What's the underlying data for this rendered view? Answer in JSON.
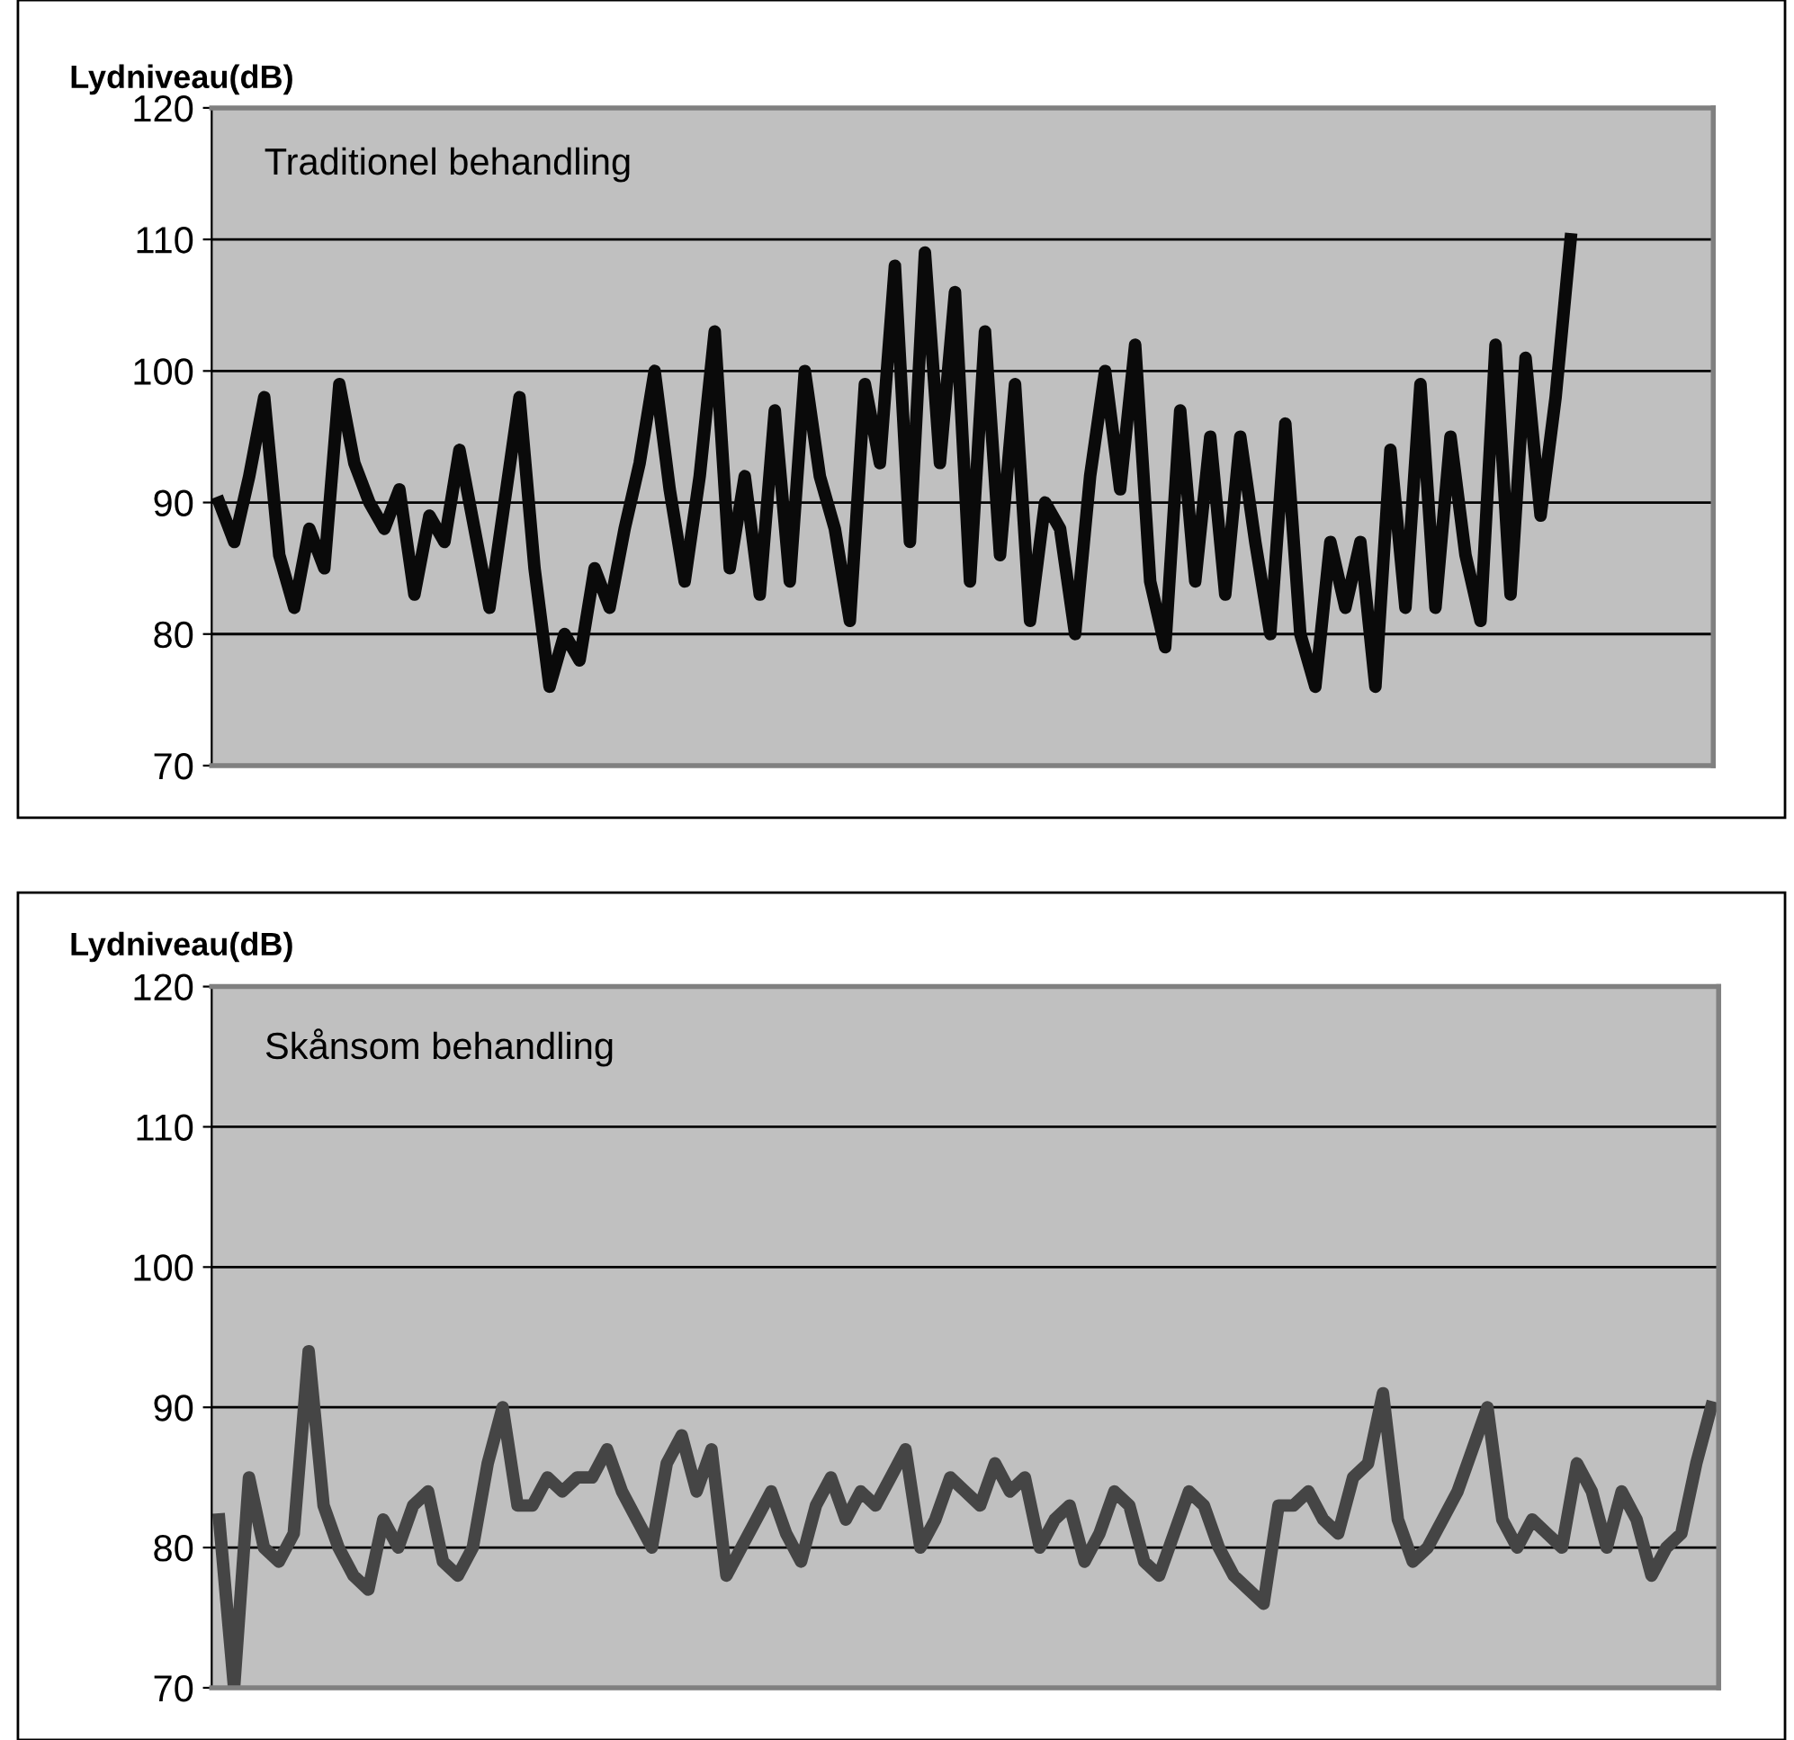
{
  "chart_data": [
    {
      "type": "line",
      "ylabel": "Lydniveau(dB)",
      "annotations": [
        "Traditionel behandling"
      ],
      "categories": [
        null,
        null,
        null,
        null,
        null,
        null,
        null,
        null,
        null,
        null,
        null,
        null,
        null,
        null,
        null,
        null,
        null,
        null,
        null,
        null,
        null,
        null,
        null,
        null,
        null,
        null,
        null,
        null,
        null,
        null,
        null,
        null,
        null,
        null,
        null,
        null,
        null,
        null,
        null,
        null,
        null,
        null,
        null,
        null,
        null,
        null,
        null,
        null,
        null,
        null,
        null,
        null,
        null,
        null,
        null,
        null,
        null,
        null,
        null,
        null,
        null,
        null,
        null,
        null,
        null,
        null,
        null,
        null,
        null,
        null,
        null,
        null,
        null,
        null,
        null,
        null,
        null,
        null,
        null,
        null,
        null,
        null,
        null,
        null,
        null,
        null,
        null,
        null,
        null,
        null,
        null,
        null,
        null,
        null,
        null,
        null,
        null,
        null,
        null,
        null
      ],
      "series": [
        {
          "color": "#0a0a0a",
          "values": [
            90,
            87,
            92,
            98,
            86,
            82,
            88,
            85,
            99,
            93,
            90,
            88,
            91,
            83,
            89,
            87,
            94,
            88,
            82,
            90,
            98,
            85,
            76,
            80,
            78,
            85,
            82,
            88,
            93,
            100,
            91,
            84,
            92,
            103,
            85,
            92,
            83,
            97,
            84,
            100,
            92,
            88,
            81,
            99,
            93,
            108,
            87,
            109,
            93,
            106,
            84,
            103,
            86,
            99,
            81,
            90,
            88,
            80,
            92,
            100,
            91,
            102,
            84,
            79,
            97,
            84,
            95,
            83,
            95,
            87,
            80,
            96,
            80,
            76,
            87,
            82,
            87,
            76,
            94,
            82,
            99,
            82,
            95,
            86,
            81,
            102,
            83,
            101,
            89,
            98,
            110,
            null,
            null,
            null,
            null,
            null,
            null,
            null,
            null,
            null
          ]
        }
      ],
      "ylim": [
        70,
        120
      ],
      "yticks": [
        70,
        80,
        90,
        100,
        110,
        120
      ],
      "grid": "y",
      "tick_labels": "y",
      "marker": "none",
      "line_style": "solid"
    },
    {
      "type": "line",
      "ylabel": "Lydniveau(dB)",
      "annotations": [
        "Skånsom behandling"
      ],
      "categories": [
        null,
        null,
        null,
        null,
        null,
        null,
        null,
        null,
        null,
        null,
        null,
        null,
        null,
        null,
        null,
        null,
        null,
        null,
        null,
        null,
        null,
        null,
        null,
        null,
        null,
        null,
        null,
        null,
        null,
        null,
        null,
        null,
        null,
        null,
        null,
        null,
        null,
        null,
        null,
        null,
        null,
        null,
        null,
        null,
        null,
        null,
        null,
        null,
        null,
        null,
        null,
        null,
        null,
        null,
        null,
        null,
        null,
        null,
        null,
        null,
        null,
        null,
        null,
        null,
        null,
        null,
        null,
        null,
        null,
        null,
        null,
        null,
        null,
        null,
        null,
        null,
        null,
        null,
        null,
        null,
        null,
        null,
        null,
        null,
        null,
        null,
        null,
        null,
        null,
        null,
        null,
        null,
        null,
        null,
        null,
        null,
        null,
        null,
        null,
        null,
        null
      ],
      "series": [
        {
          "color": "#454545",
          "values": [
            82,
            70,
            85,
            80,
            79,
            81,
            94,
            83,
            80,
            78,
            77,
            82,
            80,
            83,
            84,
            79,
            78,
            80,
            86,
            90,
            83,
            83,
            85,
            84,
            85,
            85,
            87,
            84,
            82,
            80,
            86,
            88,
            84,
            87,
            78,
            80,
            82,
            84,
            81,
            79,
            83,
            85,
            82,
            84,
            83,
            85,
            87,
            80,
            82,
            85,
            84,
            83,
            86,
            84,
            85,
            80,
            82,
            83,
            79,
            81,
            84,
            83,
            79,
            78,
            81,
            84,
            83,
            80,
            78,
            77,
            76,
            83,
            83,
            84,
            82,
            81,
            85,
            86,
            91,
            82,
            79,
            80,
            82,
            84,
            87,
            90,
            82,
            80,
            82,
            81,
            80,
            86,
            84,
            80,
            84,
            82,
            78,
            80,
            81,
            86,
            90
          ]
        }
      ],
      "ylim": [
        70,
        120
      ],
      "yticks": [
        70,
        80,
        90,
        100,
        110,
        120
      ],
      "grid": "y",
      "tick_labels": "y",
      "marker": "none",
      "line_style": "solid"
    }
  ]
}
